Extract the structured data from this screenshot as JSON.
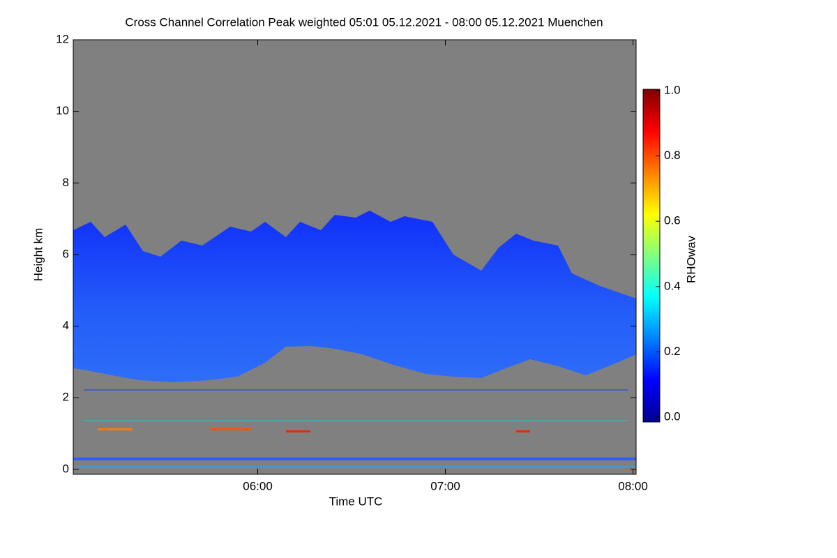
{
  "chart_data": {
    "type": "heatmap",
    "title": "Cross Channel Correlation Peak weighted   05:01 05.12.2021 - 08:00 05.12.2021 Muenchen",
    "x_label": "Time UTC",
    "y_label": "Height km",
    "xlim": [
      301,
      481
    ],
    "xticks": [
      {
        "value": 360,
        "label": "06:00"
      },
      {
        "value": 420,
        "label": "07:00"
      },
      {
        "value": 480,
        "label": "08:00"
      }
    ],
    "ylim": [
      -0.14,
      12
    ],
    "yticks": [
      0,
      2,
      4,
      6,
      8,
      10,
      12
    ],
    "background": "#808080",
    "colorbar_label": "RHOwav",
    "clim": [
      0,
      1
    ],
    "cticks": [
      {
        "value": 0,
        "label": "0.0"
      },
      {
        "value": 0.2,
        "label": "0.2"
      },
      {
        "value": 0.4,
        "label": "0.4"
      },
      {
        "value": 0.6,
        "label": "0.6"
      },
      {
        "value": 0.8,
        "label": "0.8"
      },
      {
        "value": 1,
        "label": "1.0"
      }
    ],
    "colormap": [
      "#00008f",
      "#0000ff",
      "#0080ff",
      "#00ffff",
      "#80ff80",
      "#ffff00",
      "#ff8000",
      "#ff0000",
      "#800000"
    ]
  }
}
